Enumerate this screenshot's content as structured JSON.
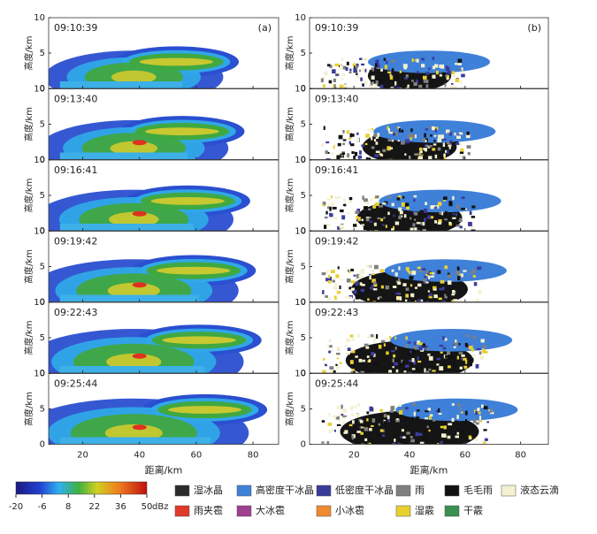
{
  "panel_labels": [
    "(a)",
    "(b)"
  ],
  "times": [
    "09:10:39",
    "09:13:40",
    "09:16:41",
    "09:19:42",
    "09:22:43",
    "09:25:44"
  ],
  "y_axis_label": "高度/km",
  "y_ticks": [
    0,
    5,
    10
  ],
  "x_axis_label": "距离/km",
  "x_ticks": [
    20,
    40,
    60,
    80
  ],
  "colorbar": {
    "ticks": [
      -20,
      -6,
      8,
      22,
      36,
      50
    ],
    "unit": "dBz"
  },
  "classes": [
    {
      "label": "湿冰晶",
      "color": "#2b2b2b"
    },
    {
      "label": "高密度干冰晶",
      "color": "#3f80d8"
    },
    {
      "label": "低密度干冰晶",
      "color": "#3a3c9c"
    },
    {
      "label": "雨",
      "color": "#808080"
    },
    {
      "label": "毛毛雨",
      "color": "#111111"
    },
    {
      "label": "液态云滴",
      "color": "#f3f1d0"
    },
    {
      "label": "雨夹雹",
      "color": "#e03a2a"
    },
    {
      "label": "大冰雹",
      "color": "#a04090"
    },
    {
      "label": "小冰雹",
      "color": "#f08a30"
    },
    {
      "label": "湿霰",
      "color": "#e8d030"
    },
    {
      "label": "干霰",
      "color": "#3a9050"
    }
  ]
}
